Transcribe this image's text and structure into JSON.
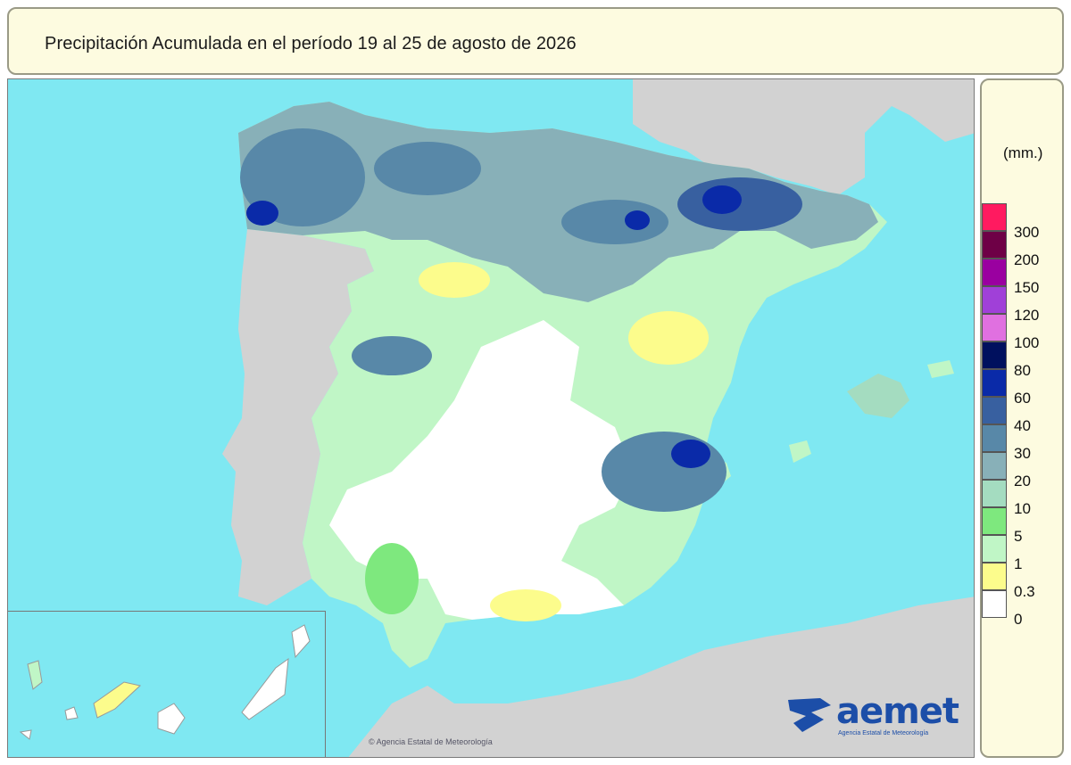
{
  "title": "Precipitación Acumulada en el período 19 al 25 de agosto de 2026",
  "legend": {
    "units": "(mm.)",
    "classes": [
      {
        "label": "300",
        "color": "#ff1a60"
      },
      {
        "label": "200",
        "color": "#6e0046"
      },
      {
        "label": "150",
        "color": "#9a00a0"
      },
      {
        "label": "120",
        "color": "#a040d8"
      },
      {
        "label": "100",
        "color": "#e070e0"
      },
      {
        "label": "80",
        "color": "#00105e"
      },
      {
        "label": "60",
        "color": "#0a2aa8"
      },
      {
        "label": "40",
        "color": "#3860a0"
      },
      {
        "label": "30",
        "color": "#5888a8"
      },
      {
        "label": "20",
        "color": "#88b0b8"
      },
      {
        "label": "10",
        "color": "#a4dcc0"
      },
      {
        "label": "5",
        "color": "#7ee87e"
      },
      {
        "label": "1",
        "color": "#c0f6c6"
      },
      {
        "label": "0.3",
        "color": "#fcfc8c"
      },
      {
        "label": "0",
        "color": "#ffffff"
      }
    ]
  },
  "colors": {
    "sea": "#7fe8f2",
    "land_other": "#d2d2d2"
  },
  "logo": {
    "text": "aemet",
    "subtitle": "Agencia Estatal de Meteorología"
  },
  "copyright": "© Agencia Estatal de Meteorología"
}
